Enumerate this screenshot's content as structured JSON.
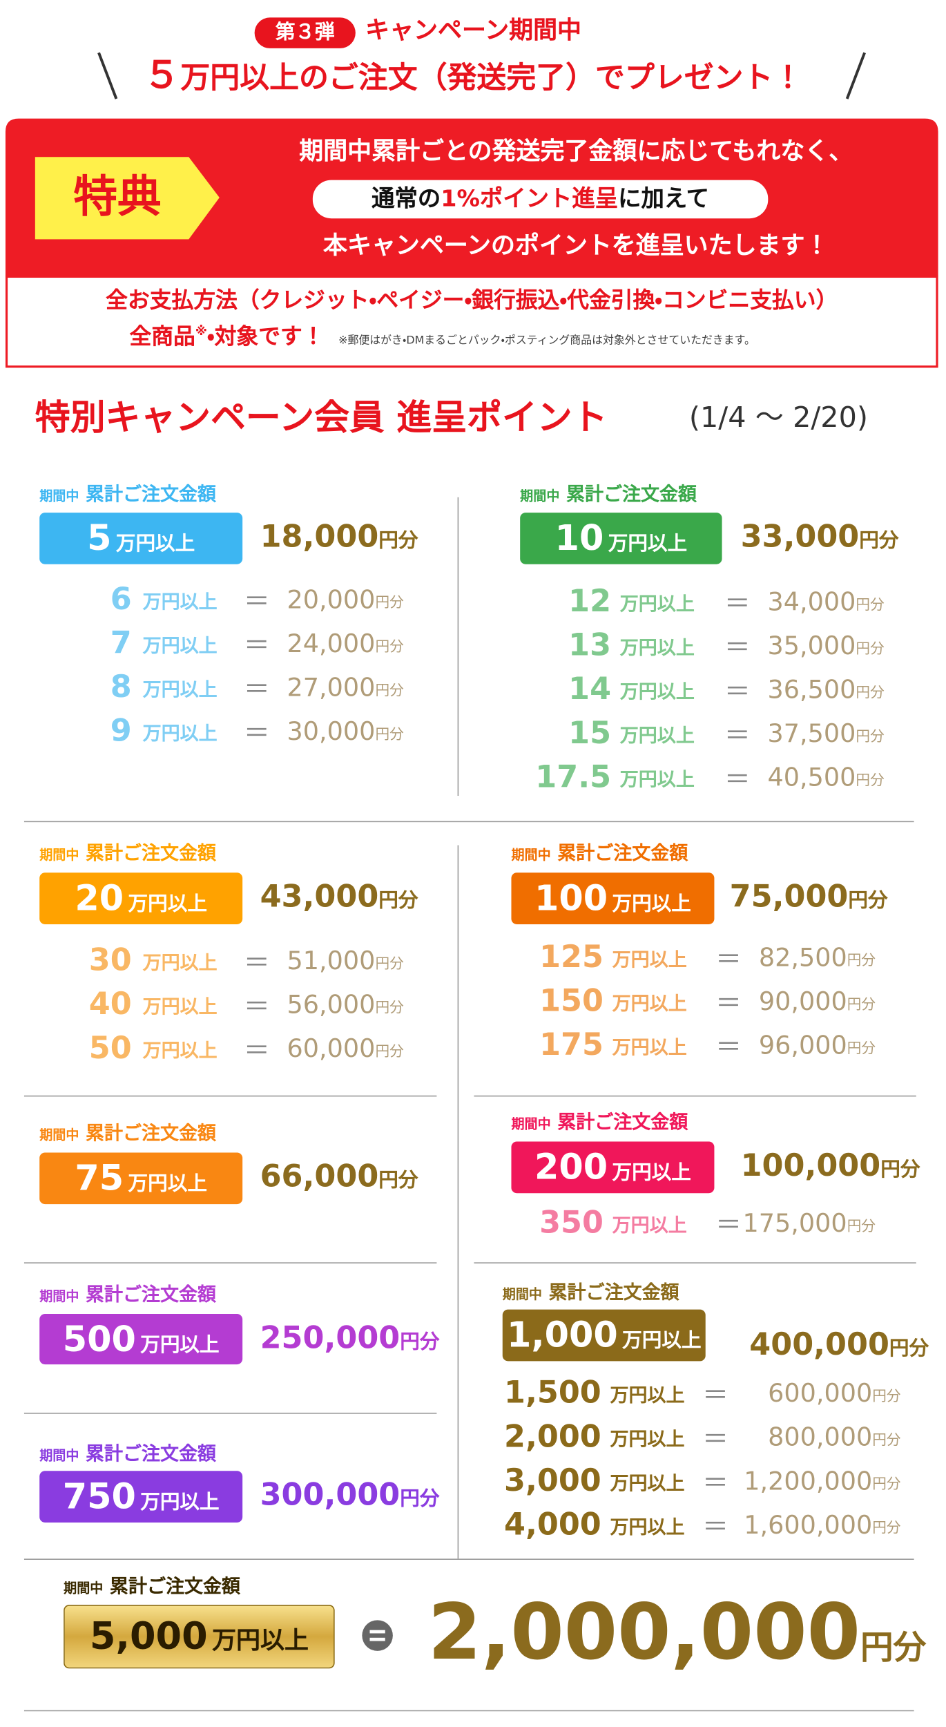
{
  "header": {
    "badge": "第３弾",
    "line1": "キャンペーン期間中",
    "highlight": "５",
    "line2": "万円以上のご注文（発送完了）でプレゼント！"
  },
  "benefit": {
    "label": "特典",
    "line1": "期間中累計ごとの発送完了金額に応じてもれなく、",
    "pill_before": "通常の",
    "pill_highlight": "1%ポイント進呈",
    "pill_after": "に加えて",
    "line3": "本キャンペーンのポイントを進呈いたします！"
  },
  "notice": {
    "line1": "全お支払方法（クレジット・ペイジー・銀行振込・代金引換・コンビニ支払い）",
    "line2_a": "全商品",
    "line2_sup": "※",
    "line2_b": "・対象です！",
    "note": "※郵便はがき・DMまるごとパック・ポスティング商品は対象外とさせていただきます。"
  },
  "section": {
    "title": "特別キャンペーン会員 進呈ポイント",
    "period": "(1/4 〜 2/20)"
  },
  "common": {
    "label_prefix": "期間中",
    "label": "累計ご注文金額",
    "unit": "万円以上",
    "points_unit": "円分",
    "eq": "＝"
  },
  "blocks": [
    {
      "color": "#3db6f2",
      "row_color": "#7fcef4",
      "points_color": "#8b6b1e",
      "amount": "5",
      "points": "18,000",
      "rows": [
        {
          "amount": "6",
          "points": "20,000"
        },
        {
          "amount": "7",
          "points": "24,000"
        },
        {
          "amount": "8",
          "points": "27,000"
        },
        {
          "amount": "9",
          "points": "30,000"
        }
      ]
    },
    {
      "color": "#3aa84a",
      "row_color": "#80c98e",
      "points_color": "#8b6b1e",
      "amount": "10",
      "points": "33,000",
      "rows": [
        {
          "amount": "12",
          "points": "34,000"
        },
        {
          "amount": "13",
          "points": "35,000"
        },
        {
          "amount": "14",
          "points": "36,500"
        },
        {
          "amount": "15",
          "points": "37,500"
        },
        {
          "amount": "17.5",
          "points": "40,500"
        }
      ]
    },
    {
      "color": "#ffa200",
      "row_color": "#f9b764",
      "points_color": "#8b6b1e",
      "amount": "20",
      "points": "43,000",
      "rows": [
        {
          "amount": "30",
          "points": "51,000"
        },
        {
          "amount": "40",
          "points": "56,000"
        },
        {
          "amount": "50",
          "points": "60,000"
        }
      ]
    },
    {
      "color": "#f06e00",
      "row_color": "#f3a85e",
      "points_color": "#8b6b1e",
      "amount": "100",
      "points": "75,000",
      "rows": [
        {
          "amount": "125",
          "points": "82,500"
        },
        {
          "amount": "150",
          "points": "90,000"
        },
        {
          "amount": "175",
          "points": "96,000"
        }
      ]
    },
    {
      "color": "#f98712",
      "row_color": "#f98712",
      "points_color": "#8b6b1e",
      "amount": "75",
      "points": "66,000",
      "rows": []
    },
    {
      "color": "#f0175a",
      "row_color": "#f47ca1",
      "points_color": "#8b6b1e",
      "amount": "200",
      "points": "100,000",
      "rows": [
        {
          "amount": "350",
          "points": "175,000"
        }
      ]
    },
    {
      "color": "#b43cd2",
      "row_color": "#b43cd2",
      "points_color": "#b43cd2",
      "amount": "500",
      "points": "250,000",
      "rows": []
    },
    {
      "color": "#8b6a1a",
      "row_color": "#8b6a1a",
      "points_color": "#8b6b1e",
      "amount": "1,000",
      "points": "400,000",
      "rows": [
        {
          "amount": "1,500",
          "points": "600,000"
        },
        {
          "amount": "2,000",
          "points": "800,000"
        },
        {
          "amount": "3,000",
          "points": "1,200,000"
        },
        {
          "amount": "4,000",
          "points": "1,600,000"
        }
      ]
    },
    {
      "color": "#8a3ce0",
      "row_color": "#8a3ce0",
      "points_color": "#8a3ce0",
      "amount": "750",
      "points": "300,000",
      "rows": []
    },
    {
      "color": "gold",
      "row_color": "#8b6a1a",
      "points_color": "#8b6b1e",
      "amount": "5,000",
      "points": "2,000,000",
      "rows": []
    }
  ]
}
